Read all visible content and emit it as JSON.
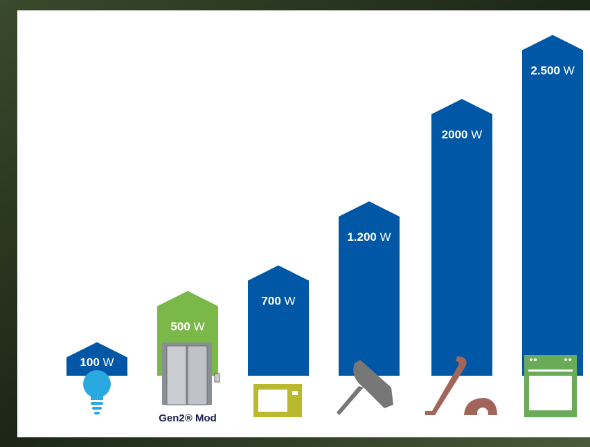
{
  "chart_data": {
    "type": "bar",
    "categories": [
      null,
      "Gen2® Mod",
      null,
      null,
      null,
      null
    ],
    "values": [
      100,
      500,
      700,
      1200,
      2000,
      2500
    ],
    "value_labels": [
      "100 W",
      "500 W",
      "700 W",
      "1.200 W",
      "2000 W",
      "2.500 W"
    ],
    "colors": [
      "#0057a5",
      "#7bb84a",
      "#0057a5",
      "#0057a5",
      "#0057a5",
      "#0057a5"
    ]
  }
}
